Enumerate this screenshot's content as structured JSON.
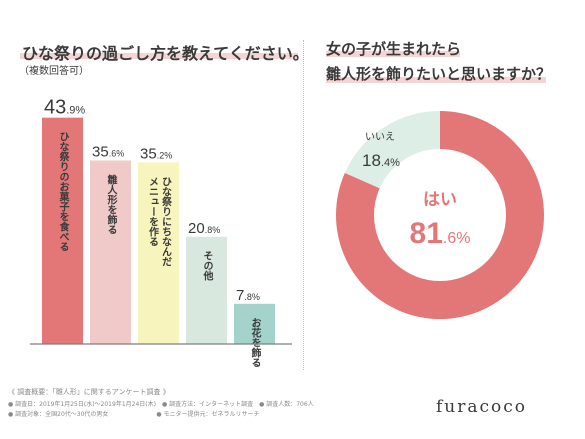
{
  "colors": {
    "bar_colors": [
      "#e37777",
      "#f0c9c9",
      "#f7f4be",
      "#d9e8df",
      "#a3d3cb"
    ],
    "donut_yes": "#e37777",
    "donut_no": "#dceee6",
    "axis": "#7f7f7f",
    "text": "#3a3a3a",
    "highlight": "#f5d4d4"
  },
  "left": {
    "title": "ひな祭りの過ごし方を教えてください。",
    "subtitle": "（複数回答可）"
  },
  "right": {
    "title_line1": "女の子が生まれたら",
    "title_line2": "雛人形を飾りたいと思いますか？"
  },
  "chart_data": [
    {
      "type": "bar",
      "title": "ひな祭りの過ごし方を教えてください。",
      "subtitle": "（複数回答可）",
      "categories": [
        "ひな祭りのお菓子を食べる",
        "雛人形を飾る",
        "ひな祭りにちなんだメニューを作る",
        "その他",
        "お花を飾る"
      ],
      "values": [
        43.9,
        35.6,
        35.2,
        20.8,
        7.8
      ],
      "value_labels": [
        {
          "int": "43",
          "dec": ".9",
          "unit": "%"
        },
        {
          "int": "35",
          "dec": ".6",
          "unit": "%"
        },
        {
          "int": "35",
          "dec": ".2",
          "unit": "%"
        },
        {
          "int": "20",
          "dec": ".8",
          "unit": "%"
        },
        {
          "int": "7",
          "dec": ".8",
          "unit": "%"
        }
      ],
      "category_label_lines": [
        [
          "ひな祭りのお菓子を食べる"
        ],
        [
          "雛人形を飾る"
        ],
        [
          "ひな祭りにちなんだ",
          "メニューを作る"
        ],
        [
          "その他"
        ],
        [
          "お花を飾る"
        ]
      ],
      "ylim": [
        0,
        45
      ],
      "grid": false,
      "legend": "none"
    },
    {
      "type": "pie",
      "style": "donut",
      "title": "女の子が生まれたら雛人形を飾りたいと思いますか？",
      "categories": [
        "はい",
        "いいえ"
      ],
      "values": [
        81.6,
        18.4
      ],
      "labels": [
        {
          "name": "はい",
          "int": "81",
          "dec": ".6",
          "unit": "%"
        },
        {
          "name": "いいえ",
          "int": "18",
          "dec": ".4",
          "unit": "%"
        }
      ]
    }
  ],
  "survey": {
    "heading": "《 調査概要：「雛人形」に関するアンケート調査 》",
    "line1": "● 調査日：2019年1月25日(水)～2019年1月24日(木)　● 調査方法：インターネット調査　● 調査人数：706人",
    "line2": "● 調査対象：全国20代～30代の男女　　　　　　　　● モニター提供元：ゼネラルリサーチ"
  },
  "logo": "furacoco"
}
